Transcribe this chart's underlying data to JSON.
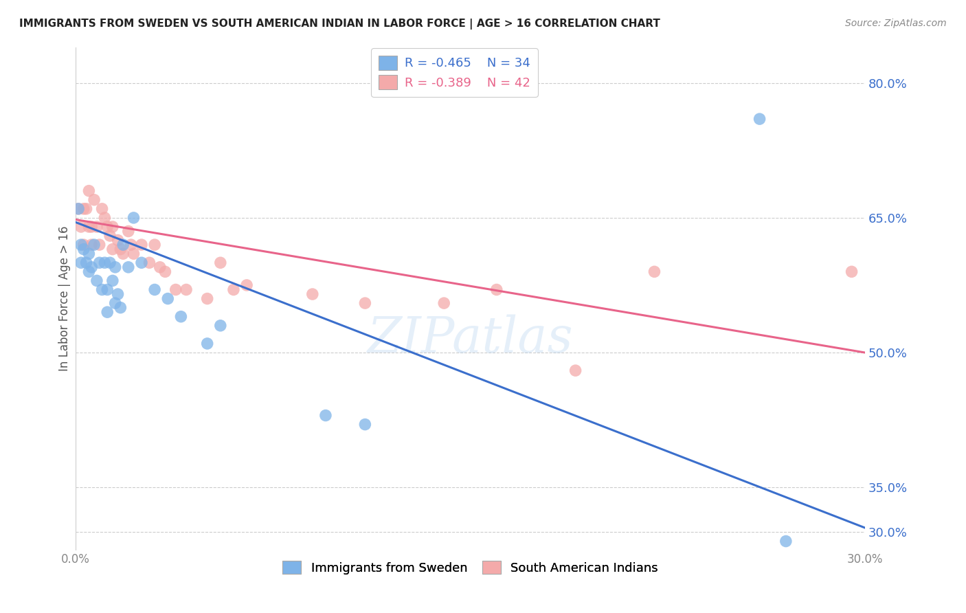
{
  "title": "IMMIGRANTS FROM SWEDEN VS SOUTH AMERICAN INDIAN IN LABOR FORCE | AGE > 16 CORRELATION CHART",
  "source": "Source: ZipAtlas.com",
  "ylabel": "In Labor Force | Age > 16",
  "watermark": "ZIPatlas",
  "blue_label": "Immigrants from Sweden",
  "pink_label": "South American Indians",
  "blue_r": "-0.465",
  "blue_n": "34",
  "pink_r": "-0.389",
  "pink_n": "42",
  "xlim": [
    0.0,
    0.3
  ],
  "ylim": [
    0.28,
    0.84
  ],
  "ytick_pos": [
    0.3,
    0.35,
    0.5,
    0.65,
    0.8
  ],
  "ytick_labels": [
    "30.0%",
    "35.0%",
    "50.0%",
    "65.0%",
    "80.0%"
  ],
  "blue_color": "#7EB3E8",
  "pink_color": "#F4AAAA",
  "blue_line_color": "#3B6FCC",
  "pink_line_color": "#E8648A",
  "blue_line_x0": 0.0,
  "blue_line_y0": 0.645,
  "blue_line_x1": 0.3,
  "blue_line_y1": 0.305,
  "pink_line_x0": 0.0,
  "pink_line_y0": 0.648,
  "pink_line_x1": 0.3,
  "pink_line_y1": 0.5,
  "blue_scatter_x": [
    0.001,
    0.002,
    0.002,
    0.003,
    0.004,
    0.005,
    0.005,
    0.006,
    0.007,
    0.008,
    0.009,
    0.01,
    0.011,
    0.012,
    0.012,
    0.013,
    0.014,
    0.015,
    0.015,
    0.016,
    0.017,
    0.018,
    0.02,
    0.022,
    0.025,
    0.03,
    0.035,
    0.04,
    0.05,
    0.055,
    0.095,
    0.11,
    0.26,
    0.27
  ],
  "blue_scatter_y": [
    0.66,
    0.62,
    0.6,
    0.615,
    0.6,
    0.61,
    0.59,
    0.595,
    0.62,
    0.58,
    0.6,
    0.57,
    0.6,
    0.57,
    0.545,
    0.6,
    0.58,
    0.595,
    0.555,
    0.565,
    0.55,
    0.62,
    0.595,
    0.65,
    0.6,
    0.57,
    0.56,
    0.54,
    0.51,
    0.53,
    0.43,
    0.42,
    0.76,
    0.29
  ],
  "pink_scatter_x": [
    0.001,
    0.002,
    0.003,
    0.003,
    0.004,
    0.005,
    0.005,
    0.006,
    0.006,
    0.007,
    0.008,
    0.009,
    0.01,
    0.011,
    0.012,
    0.013,
    0.014,
    0.014,
    0.016,
    0.017,
    0.018,
    0.02,
    0.021,
    0.022,
    0.025,
    0.028,
    0.03,
    0.032,
    0.034,
    0.038,
    0.042,
    0.05,
    0.055,
    0.06,
    0.065,
    0.09,
    0.11,
    0.14,
    0.16,
    0.19,
    0.22,
    0.295
  ],
  "pink_scatter_y": [
    0.66,
    0.64,
    0.66,
    0.62,
    0.66,
    0.64,
    0.68,
    0.64,
    0.62,
    0.67,
    0.64,
    0.62,
    0.66,
    0.65,
    0.64,
    0.63,
    0.615,
    0.64,
    0.625,
    0.615,
    0.61,
    0.635,
    0.62,
    0.61,
    0.62,
    0.6,
    0.62,
    0.595,
    0.59,
    0.57,
    0.57,
    0.56,
    0.6,
    0.57,
    0.575,
    0.565,
    0.555,
    0.555,
    0.57,
    0.48,
    0.59,
    0.59
  ]
}
